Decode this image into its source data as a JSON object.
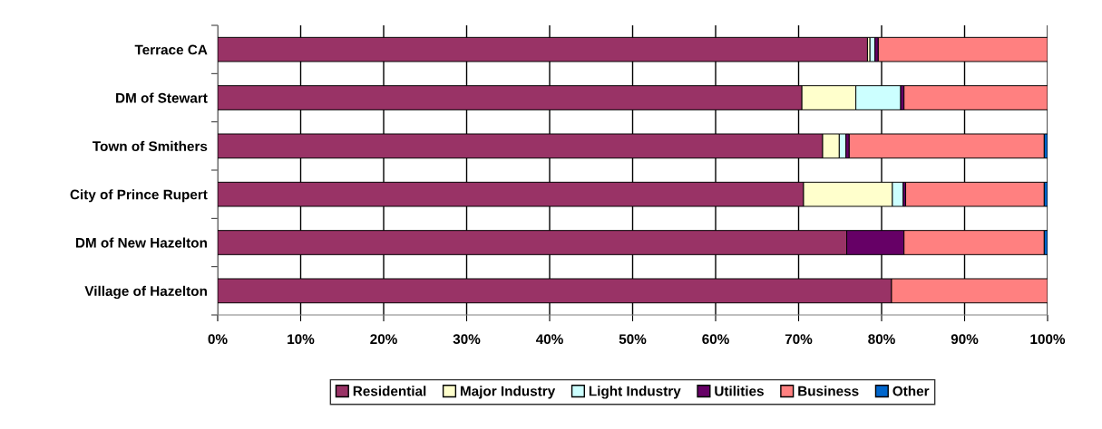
{
  "chart_data": {
    "type": "bar",
    "orientation": "horizontal",
    "stacked": true,
    "categories": [
      "Terrace CA",
      "DM of Stewart",
      "Town of Smithers",
      "City of Prince Rupert",
      "DM of New Hazelton",
      "Village of Hazelton"
    ],
    "series": [
      {
        "name": "Residential",
        "color": "#993366",
        "values": [
          78.3,
          70.4,
          72.9,
          70.6,
          75.8,
          81.2
        ]
      },
      {
        "name": "Major Industry",
        "color": "#ffffcc",
        "values": [
          0.3,
          6.5,
          2.0,
          10.7,
          null,
          null
        ]
      },
      {
        "name": "Light Industry",
        "color": "#ccffff",
        "values": [
          0.6,
          5.4,
          0.8,
          1.3,
          null,
          null
        ]
      },
      {
        "name": "Utilities",
        "color": "#660066",
        "values": [
          0.4,
          0.4,
          0.4,
          0.3,
          6.9,
          null
        ]
      },
      {
        "name": "Business",
        "color": "#ff8080",
        "values": [
          20.4,
          17.3,
          23.5,
          16.7,
          16.9,
          18.8
        ]
      },
      {
        "name": "Other",
        "color": "#0066cc",
        "values": [
          null,
          null,
          0.4,
          0.4,
          0.4,
          null
        ]
      }
    ],
    "xlim": [
      0,
      100
    ],
    "xticks": [
      {
        "value": 0,
        "label": "0%"
      },
      {
        "value": 10,
        "label": "10%"
      },
      {
        "value": 20,
        "label": "20%"
      },
      {
        "value": 30,
        "label": "30%"
      },
      {
        "value": 40,
        "label": "40%"
      },
      {
        "value": 50,
        "label": "50%"
      },
      {
        "value": 60,
        "label": "60%"
      },
      {
        "value": 70,
        "label": "70%"
      },
      {
        "value": 80,
        "label": "80%"
      },
      {
        "value": 90,
        "label": "90%"
      },
      {
        "value": 100,
        "label": "100%"
      }
    ],
    "grid": "x",
    "legend": "bottom"
  }
}
